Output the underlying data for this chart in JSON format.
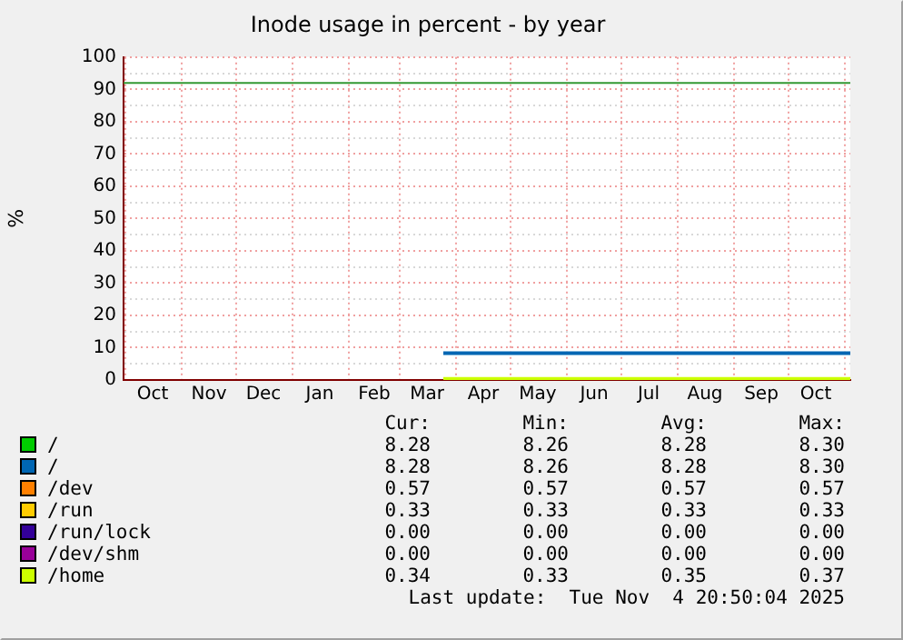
{
  "chart_data": {
    "type": "line",
    "title": "Inode usage in percent - by year",
    "ylabel": "%",
    "x": [
      "2025-03-25",
      "2025-11-04"
    ],
    "series": [
      {
        "name": "/",
        "color": "#00cc00",
        "values": [
          null,
          null
        ]
      },
      {
        "name": "/",
        "color": "#0066b3",
        "values": [
          8.28,
          8.28
        ]
      },
      {
        "name": "/dev",
        "color": "#ff8000",
        "values": [
          null,
          null
        ]
      },
      {
        "name": "/run",
        "color": "#ffcc00",
        "values": [
          null,
          null
        ]
      },
      {
        "name": "/run/lock",
        "color": "#330099",
        "values": [
          null,
          null
        ]
      },
      {
        "name": "/dev/shm",
        "color": "#990099",
        "values": [
          null,
          null
        ]
      },
      {
        "name": "/home",
        "color": "#ccff00",
        "values": [
          0.35,
          0.34
        ]
      }
    ],
    "xlim": [
      "2024-09-30",
      "2025-11-04"
    ],
    "xticks": [
      {
        "value": "2024-10-01",
        "label": null
      },
      {
        "value": "2024-10-16",
        "label": "Oct"
      },
      {
        "value": "2024-11-01",
        "label": null
      },
      {
        "value": "2024-11-16",
        "label": "Nov"
      },
      {
        "value": "2024-12-01",
        "label": null
      },
      {
        "value": "2024-12-16",
        "label": "Dec"
      },
      {
        "value": "2025-01-01",
        "label": null
      },
      {
        "value": "2025-01-16",
        "label": "Jan"
      },
      {
        "value": "2025-02-01",
        "label": null
      },
      {
        "value": "2025-02-15",
        "label": "Feb"
      },
      {
        "value": "2025-03-01",
        "label": null
      },
      {
        "value": "2025-03-16",
        "label": "Mar"
      },
      {
        "value": "2025-04-01",
        "label": null
      },
      {
        "value": "2025-04-16",
        "label": "Apr"
      },
      {
        "value": "2025-05-01",
        "label": null
      },
      {
        "value": "2025-05-16",
        "label": "May"
      },
      {
        "value": "2025-06-01",
        "label": null
      },
      {
        "value": "2025-06-16",
        "label": "Jun"
      },
      {
        "value": "2025-07-01",
        "label": null
      },
      {
        "value": "2025-07-16",
        "label": "Jul"
      },
      {
        "value": "2025-08-01",
        "label": null
      },
      {
        "value": "2025-08-16",
        "label": "Aug"
      },
      {
        "value": "2025-09-01",
        "label": null
      },
      {
        "value": "2025-09-16",
        "label": "Sep"
      },
      {
        "value": "2025-10-01",
        "label": null
      },
      {
        "value": "2025-10-16",
        "label": "Oct"
      },
      {
        "value": "2025-11-01",
        "label": null
      }
    ],
    "ylim": [
      0,
      100
    ],
    "yticks": [
      0,
      {
        "value": 5,
        "label": null
      },
      10,
      {
        "value": 15,
        "label": null
      },
      20,
      {
        "value": 25,
        "label": null
      },
      30,
      {
        "value": 35,
        "label": null
      },
      40,
      {
        "value": 45,
        "label": null
      },
      50,
      {
        "value": 55,
        "label": null
      },
      60,
      {
        "value": 65,
        "label": null
      },
      70,
      {
        "value": 75,
        "label": null
      },
      80,
      {
        "value": 85,
        "label": null
      },
      90,
      {
        "value": 95,
        "label": null
      },
      100
    ],
    "ref_lines": [
      {
        "axis": "y",
        "value": 92,
        "color": "#339933"
      }
    ],
    "grid": true,
    "legend": "bottom",
    "marker": "none",
    "line_style": "solid",
    "annotations": [
      "Cur:",
      "Min:",
      "Avg:",
      "Max:",
      "8.28",
      "8.26",
      "8.28",
      "8.30",
      "8.28",
      "8.26",
      "8.28",
      "8.30",
      "0.57",
      "0.57",
      "0.57",
      "0.57",
      "0.33",
      "0.33",
      "0.33",
      "0.33",
      "0.00",
      "0.00",
      "0.00",
      "0.00",
      "0.00",
      "0.00",
      "0.00",
      "0.00",
      "0.34",
      "0.33",
      "0.35",
      "0.37",
      "Last update:  Tue Nov  4 20:50:04 2025"
    ]
  }
}
